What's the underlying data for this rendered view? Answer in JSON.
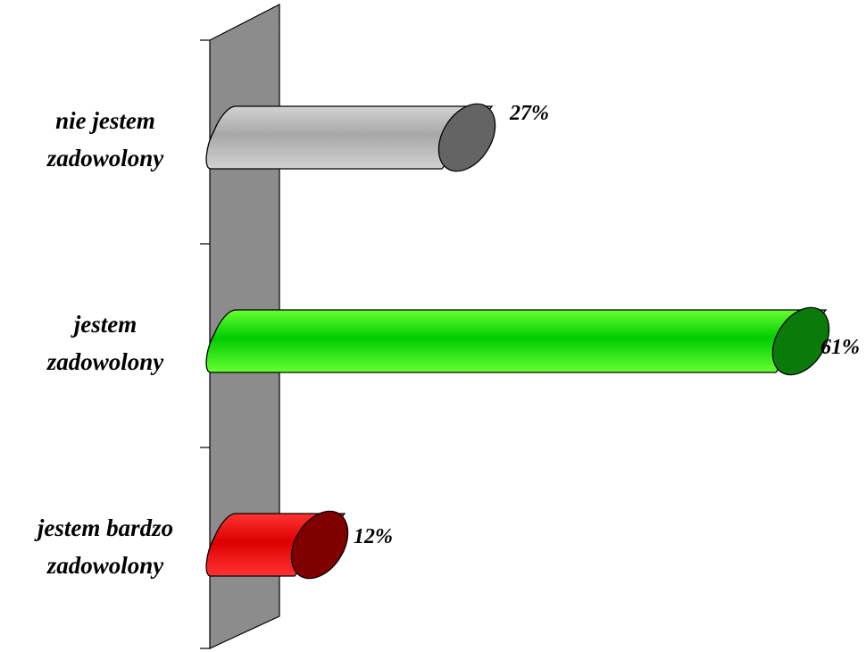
{
  "chart_data": {
    "type": "bar",
    "orientation": "horizontal",
    "style": "3d-cylinder",
    "categories": [
      [
        "nie jestem",
        "zadowolony"
      ],
      [
        "jestem",
        "zadowolony"
      ],
      [
        "jestem bardzo",
        "zadowolony"
      ]
    ],
    "values": [
      27,
      61,
      12
    ],
    "data_labels": [
      "27%",
      "61%",
      "12%"
    ],
    "colors": [
      {
        "light": "#d2d2d2",
        "mid": "#a8a8a8",
        "cap": "#646464"
      },
      {
        "light": "#66ff33",
        "mid": "#00cc00",
        "cap": "#0a7a0a"
      },
      {
        "light": "#ff3333",
        "mid": "#dd0000",
        "cap": "#800000"
      }
    ],
    "xlim": [
      0,
      65
    ],
    "wall_color": "#8c8c8c",
    "grid": false,
    "legend": "none"
  }
}
